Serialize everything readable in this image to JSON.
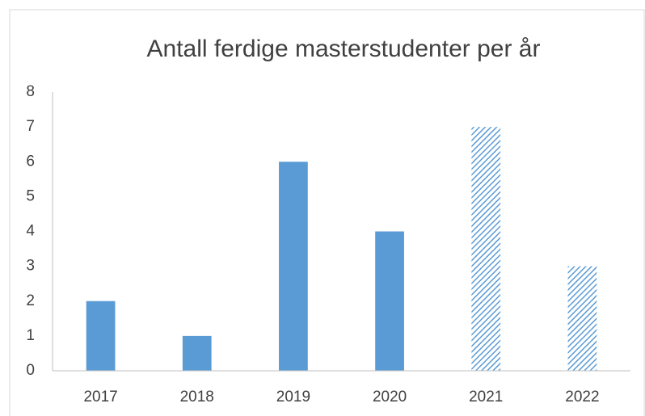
{
  "chart_data": {
    "type": "bar",
    "title": "Antall ferdige masterstudenter per år",
    "categories": [
      "2017",
      "2018",
      "2019",
      "2020",
      "2021",
      "2022"
    ],
    "values": [
      2,
      1,
      6,
      4,
      7,
      3
    ],
    "fill": [
      "solid",
      "solid",
      "solid",
      "solid",
      "hatched",
      "hatched"
    ],
    "color": "#5b9bd5",
    "ylim": [
      0,
      8
    ],
    "yticks": [
      0,
      1,
      2,
      3,
      4,
      5,
      6,
      7,
      8
    ],
    "grid": false
  }
}
